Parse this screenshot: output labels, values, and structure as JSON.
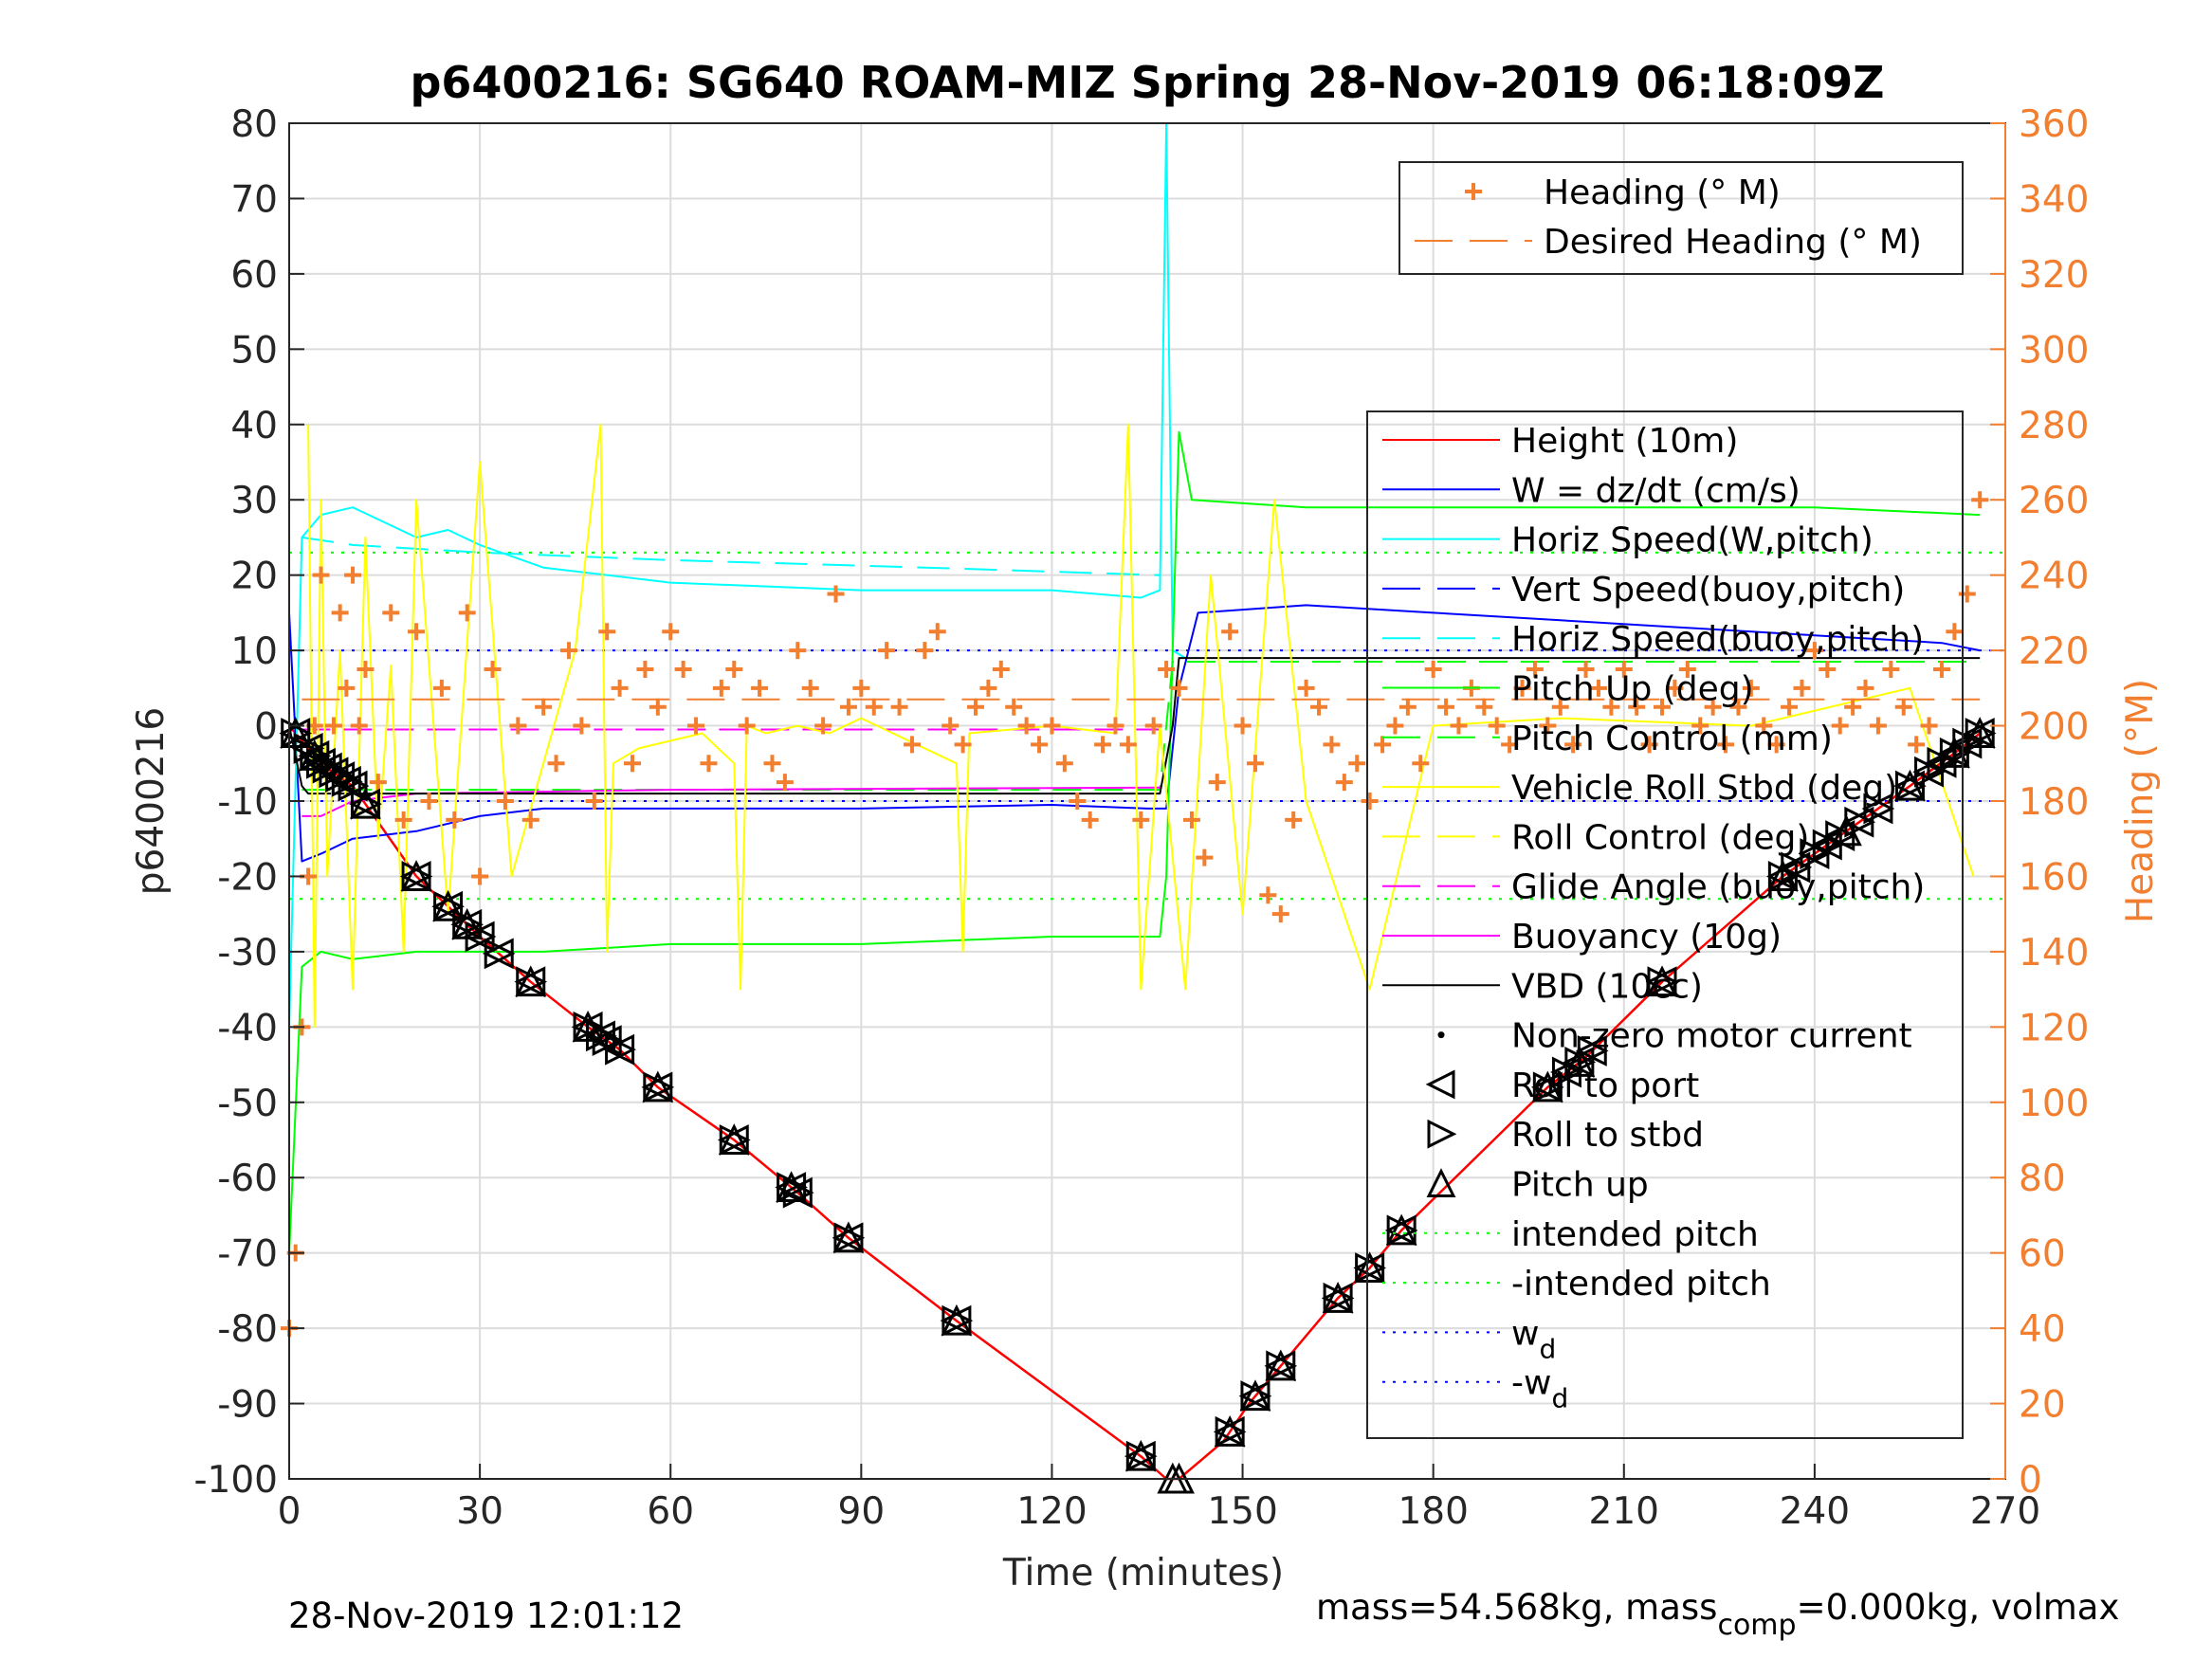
{
  "chart_data": {
    "type": "line",
    "title": "p6400216: SG640 ROAM-MIZ Spring 28-Nov-2019 06:18:09Z",
    "xlabel": "Time (minutes)",
    "ylabel": "p6400216",
    "y2label": "Heading (°M)",
    "xlim": [
      0,
      270
    ],
    "ylim": [
      -100,
      80
    ],
    "y2lim": [
      0,
      360
    ],
    "x_ticks": [
      0,
      30,
      60,
      90,
      120,
      150,
      180,
      210,
      240,
      270
    ],
    "y_ticks": [
      -100,
      -90,
      -80,
      -70,
      -60,
      -50,
      -40,
      -30,
      -20,
      -10,
      0,
      10,
      20,
      30,
      40,
      50,
      60,
      70,
      80
    ],
    "y2_ticks": [
      0,
      20,
      40,
      60,
      80,
      100,
      120,
      140,
      160,
      180,
      200,
      220,
      240,
      260,
      280,
      300,
      320,
      340,
      360
    ],
    "grid": true,
    "footer_left": "28-Nov-2019 12:01:12",
    "footer_right": "mass=54.568kg, mass",
    "footer_sub": "comp",
    "footer_right2": "=0.000kg, volmax",
    "legend_heading": [
      {
        "label": "Heading (° M)",
        "style": "plus",
        "color": "#f27f2f"
      },
      {
        "label": "Desired Heading (° M)",
        "style": "dash",
        "color": "#f27f2f"
      }
    ],
    "legend_main": [
      {
        "label": "Height (10m)",
        "style": "solid",
        "color": "#ff0000"
      },
      {
        "label": "W = dz/dt (cm/s)",
        "style": "solid",
        "color": "#0000ff"
      },
      {
        "label": "Horiz Speed(W,pitch)",
        "style": "solid",
        "color": "#00ffff"
      },
      {
        "label": "Vert Speed(buoy,pitch)",
        "style": "dash",
        "color": "#0000ff"
      },
      {
        "label": "Horiz Speed(buoy,pitch)",
        "style": "dash",
        "color": "#00ffff"
      },
      {
        "label": "Pitch Up (deg)",
        "style": "solid",
        "color": "#00ff00"
      },
      {
        "label": "Pitch Control (mm)",
        "style": "dash",
        "color": "#00ff00"
      },
      {
        "label": "Vehicle Roll Stbd (deg)",
        "style": "solid",
        "color": "#ffff00"
      },
      {
        "label": "Roll Control (deg)",
        "style": "dash",
        "color": "#ffff00"
      },
      {
        "label": "Glide Angle (buoy,pitch)",
        "style": "dash",
        "color": "#ff00ff"
      },
      {
        "label": "Buoyancy (10g)",
        "style": "solid",
        "color": "#ff00ff"
      },
      {
        "label": "VBD (10cc)",
        "style": "solid",
        "color": "#000000"
      },
      {
        "label": "Non-zero motor current",
        "style": "dot",
        "color": "#000000"
      },
      {
        "label": "Roll to port",
        "style": "tri-left",
        "color": "#000000"
      },
      {
        "label": "Roll to stbd",
        "style": "tri-right",
        "color": "#000000"
      },
      {
        "label": "Pitch up",
        "style": "tri-up",
        "color": "#000000"
      },
      {
        "label": "intended pitch",
        "style": "dotted",
        "color": "#00ff00"
      },
      {
        "label": "-intended pitch",
        "style": "dotted",
        "color": "#00ff00"
      },
      {
        "label": "w",
        "sub": "d",
        "style": "dotted",
        "color": "#0000ff"
      },
      {
        "label": "-w",
        "sub": "d",
        "style": "dotted",
        "color": "#0000ff"
      }
    ],
    "reference_lines": {
      "intended_pitch": 23,
      "w_d": 10
    },
    "series": [
      {
        "name": "Height (10m)",
        "color": "#ff0000",
        "x": [
          0,
          5,
          10,
          20,
          30,
          38,
          47,
          52,
          58,
          70,
          80,
          88,
          105,
          134,
          138,
          140,
          147,
          151,
          155,
          165,
          170,
          175,
          198,
          204,
          216,
          235,
          245,
          255,
          263,
          266
        ],
        "y": [
          0,
          -5,
          -8,
          -20,
          -28,
          -34,
          -40,
          -43,
          -48,
          -55,
          -62,
          -68,
          -79,
          -97,
          -100,
          -100,
          -95,
          -90,
          -86,
          -76,
          -72,
          -67,
          -48,
          -44,
          -34,
          -20,
          -14,
          -8,
          -3,
          -1
        ]
      },
      {
        "name": "W = dz/dt (cm/s)",
        "color": "#0000ff",
        "x": [
          0,
          2,
          5,
          10,
          20,
          30,
          40,
          60,
          90,
          120,
          135,
          138,
          140,
          143,
          160,
          180,
          200,
          220,
          240,
          260,
          266
        ],
        "y": [
          15,
          -18,
          -17,
          -15,
          -14,
          -12,
          -11,
          -11,
          -11,
          -10.5,
          -11,
          -11,
          5,
          15,
          16,
          15,
          14,
          13,
          12,
          11,
          10
        ]
      },
      {
        "name": "Horiz Speed(W,pitch)",
        "color": "#00ffff",
        "x": [
          0,
          2,
          5,
          10,
          20,
          25,
          30,
          40,
          60,
          90,
          120,
          134,
          137,
          138,
          139,
          141
        ],
        "y": [
          -40,
          25,
          28,
          29,
          25,
          26,
          24,
          21,
          19,
          18,
          18,
          17,
          18,
          80,
          10,
          9
        ]
      },
      {
        "name": "Horiz Speed(buoy,pitch)",
        "color": "#00ffff",
        "dash": "34,16",
        "x": [
          2,
          10,
          30,
          60,
          100,
          137
        ],
        "y": [
          25,
          24,
          23,
          22,
          21,
          20
        ]
      },
      {
        "name": "Pitch Up (deg)",
        "color": "#00ff00",
        "x": [
          0,
          2,
          5,
          10,
          20,
          40,
          60,
          90,
          120,
          137,
          138,
          139,
          140,
          142,
          160,
          200,
          240,
          266
        ],
        "y": [
          -70,
          -32,
          -30,
          -31,
          -30,
          -30,
          -29,
          -29,
          -28,
          -28,
          -20,
          10,
          39,
          30,
          29,
          29,
          29,
          28
        ]
      },
      {
        "name": "Pitch Control (mm)",
        "color": "#00ff00",
        "dash": "30,14",
        "x": [
          2,
          137,
          139,
          266
        ],
        "y": [
          -8.5,
          -8.5,
          8.5,
          8.5
        ]
      },
      {
        "name": "Buoyancy (10g)",
        "color": "#ff00ff",
        "x": [
          2,
          5,
          10,
          20,
          60,
          137
        ],
        "y": [
          -12,
          -12,
          -10,
          -9,
          -8.5,
          -8.2
        ]
      },
      {
        "name": "Glide Angle (buoy,pitch)",
        "color": "#ff00ff",
        "dash": "30,14",
        "x": [
          2,
          137
        ],
        "y": [
          -0.5,
          -0.5
        ]
      },
      {
        "name": "VBD (10cc)",
        "color": "#000000",
        "x": [
          0,
          2,
          3,
          137,
          139,
          140,
          266
        ],
        "y": [
          0,
          -8,
          -9,
          -9,
          0,
          9,
          9
        ]
      },
      {
        "name": "Vehicle Roll Stbd (deg)",
        "color": "#ffff00",
        "x": [
          3,
          4,
          5,
          6,
          8,
          10,
          12,
          14,
          16,
          18,
          20,
          25,
          30,
          35,
          40,
          45,
          49,
          50,
          51,
          55,
          60,
          65,
          70,
          71,
          72,
          75,
          80,
          85,
          90,
          105,
          106,
          107,
          120,
          130,
          132,
          134,
          137,
          141,
          145,
          150,
          155,
          160,
          170,
          180,
          200,
          230,
          255,
          265
        ],
        "y": [
          40,
          -40,
          30,
          -20,
          10,
          -35,
          25,
          -15,
          8,
          -30,
          30,
          -25,
          35,
          -20,
          -5,
          10,
          40,
          -30,
          -5,
          -3,
          -2,
          -1,
          -5,
          -35,
          0,
          -1,
          0,
          -1,
          1,
          -5,
          -30,
          -1,
          0,
          -1,
          40,
          -35,
          0,
          -35,
          20,
          -25,
          30,
          -10,
          -35,
          0,
          1,
          0,
          5,
          -20
        ]
      }
    ],
    "heading_series": {
      "name": "Heading (° M)",
      "color": "#f27f2f",
      "x": [
        0,
        1,
        2,
        3,
        4,
        5,
        6,
        7,
        8,
        9,
        10,
        11,
        12,
        14,
        16,
        18,
        20,
        22,
        24,
        26,
        28,
        30,
        32,
        34,
        36,
        38,
        40,
        42,
        44,
        46,
        48,
        50,
        52,
        54,
        56,
        58,
        60,
        62,
        64,
        66,
        68,
        70,
        72,
        74,
        76,
        78,
        80,
        82,
        84,
        86,
        88,
        90,
        92,
        94,
        96,
        98,
        100,
        102,
        104,
        106,
        108,
        110,
        112,
        114,
        116,
        118,
        120,
        122,
        124,
        126,
        128,
        130,
        132,
        134,
        136,
        138,
        140,
        142,
        144,
        146,
        148,
        150,
        152,
        154,
        156,
        158,
        160,
        162,
        164,
        166,
        168,
        170,
        172,
        174,
        176,
        178,
        180,
        182,
        184,
        186,
        188,
        190,
        192,
        194,
        196,
        198,
        200,
        202,
        204,
        206,
        208,
        210,
        212,
        214,
        216,
        218,
        220,
        222,
        224,
        226,
        228,
        230,
        232,
        234,
        236,
        238,
        240,
        242,
        244,
        246,
        248,
        250,
        252,
        254,
        256,
        258,
        260,
        262,
        264,
        266
      ],
      "y": [
        40,
        60,
        120,
        160,
        200,
        240,
        190,
        200,
        230,
        210,
        240,
        200,
        215,
        185,
        230,
        175,
        225,
        180,
        210,
        175,
        230,
        160,
        215,
        180,
        200,
        175,
        205,
        190,
        220,
        200,
        180,
        225,
        210,
        190,
        215,
        205,
        225,
        215,
        200,
        190,
        210,
        215,
        200,
        210,
        190,
        185,
        220,
        210,
        200,
        235,
        205,
        210,
        205,
        220,
        205,
        195,
        220,
        225,
        200,
        195,
        205,
        210,
        215,
        205,
        200,
        195,
        200,
        190,
        180,
        175,
        195,
        200,
        195,
        175,
        200,
        215,
        210,
        175,
        165,
        185,
        225,
        200,
        190,
        155,
        150,
        175,
        210,
        205,
        195,
        185,
        190,
        180,
        195,
        200,
        205,
        190,
        215,
        205,
        200,
        210,
        205,
        200,
        195,
        210,
        215,
        200,
        205,
        195,
        215,
        210,
        205,
        215,
        205,
        195,
        205,
        210,
        215,
        200,
        205,
        195,
        205,
        210,
        200,
        195,
        205,
        210,
        220,
        215,
        200,
        205,
        210,
        200,
        215,
        205,
        195,
        200,
        215,
        225,
        235,
        260
      ]
    },
    "desired_heading": {
      "name": "Desired Heading (° M)",
      "color": "#f27f2f",
      "x": [
        2,
        266
      ],
      "y": [
        207,
        207
      ]
    },
    "markers": {
      "roll_port_stbd_x": [
        1,
        3,
        4,
        5,
        6,
        7,
        8,
        9,
        10,
        12,
        20,
        25,
        28,
        30,
        33,
        38,
        47,
        49,
        50,
        52,
        58,
        70,
        79,
        80,
        88,
        105,
        134,
        148,
        152,
        156,
        165,
        170,
        175,
        198,
        201,
        203,
        205,
        216,
        235,
        237,
        240,
        242,
        244,
        247,
        250,
        255,
        258,
        260,
        262,
        264,
        266
      ],
      "pitch_up_x": [
        1,
        4,
        12,
        20,
        25,
        28,
        38,
        47,
        58,
        70,
        79,
        88,
        105,
        134,
        139,
        140,
        148,
        152,
        156,
        165,
        170,
        175,
        198,
        203,
        216,
        235,
        245,
        255,
        262,
        266
      ]
    }
  }
}
